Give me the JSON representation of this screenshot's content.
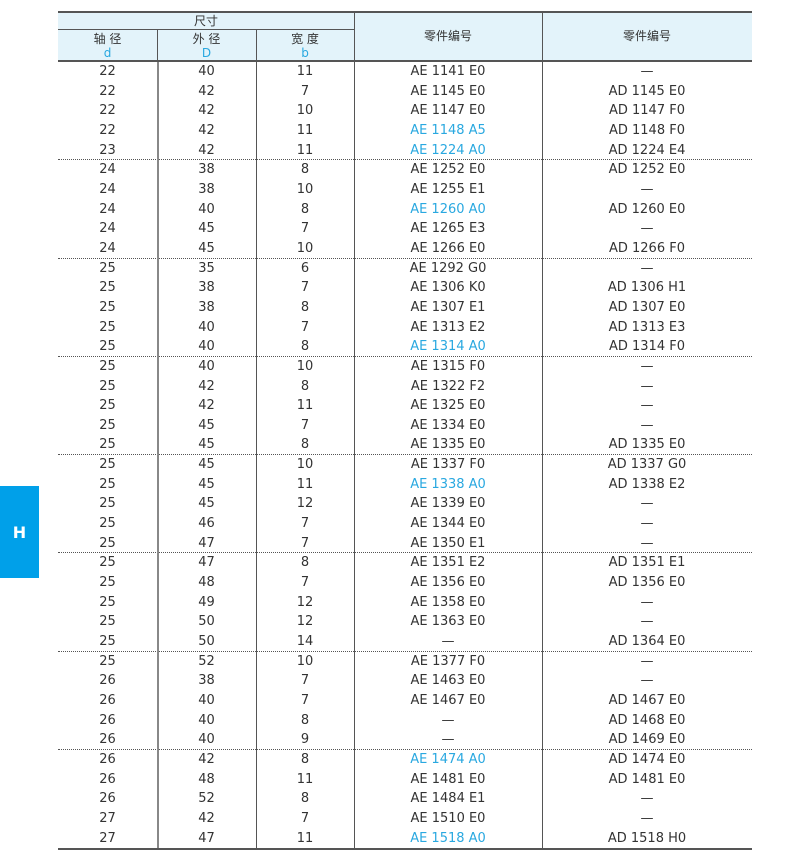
{
  "side_tab": {
    "label": "H",
    "color": "#00a0e9"
  },
  "header": {
    "group": "尺寸",
    "cols": [
      {
        "label": "轴 径",
        "symbol": "d"
      },
      {
        "label": "外 径",
        "symbol": "D"
      },
      {
        "label": "宽 度",
        "symbol": "b"
      }
    ],
    "part1": "零件编号",
    "part2": "零件编号"
  },
  "colors": {
    "highlight": "#29a8e0",
    "header_bg": "#e3f3fa"
  },
  "rows": [
    {
      "d": "22",
      "D": "40",
      "b": "11",
      "ae": "AE 1141 E0",
      "ad": "—",
      "hl": false
    },
    {
      "d": "22",
      "D": "42",
      "b": "7",
      "ae": "AE 1145 E0",
      "ad": "AD 1145 E0",
      "hl": false
    },
    {
      "d": "22",
      "D": "42",
      "b": "10",
      "ae": "AE 1147 E0",
      "ad": "AD 1147 F0",
      "hl": false
    },
    {
      "d": "22",
      "D": "42",
      "b": "11",
      "ae": "AE 1148 A5",
      "ad": "AD 1148 F0",
      "hl": true
    },
    {
      "d": "23",
      "D": "42",
      "b": "11",
      "ae": "AE 1224 A0",
      "ad": "AD 1224 E4",
      "hl": true
    },
    {
      "d": "24",
      "D": "38",
      "b": "8",
      "ae": "AE 1252 E0",
      "ad": "AD 1252 E0",
      "hl": false
    },
    {
      "d": "24",
      "D": "38",
      "b": "10",
      "ae": "AE 1255 E1",
      "ad": "—",
      "hl": false
    },
    {
      "d": "24",
      "D": "40",
      "b": "8",
      "ae": "AE 1260 A0",
      "ad": "AD 1260 E0",
      "hl": true
    },
    {
      "d": "24",
      "D": "45",
      "b": "7",
      "ae": "AE 1265 E3",
      "ad": "—",
      "hl": false
    },
    {
      "d": "24",
      "D": "45",
      "b": "10",
      "ae": "AE 1266 E0",
      "ad": "AD 1266 F0",
      "hl": false
    },
    {
      "d": "25",
      "D": "35",
      "b": "6",
      "ae": "AE 1292 G0",
      "ad": "—",
      "hl": false
    },
    {
      "d": "25",
      "D": "38",
      "b": "7",
      "ae": "AE 1306 K0",
      "ad": "AD 1306 H1",
      "hl": false
    },
    {
      "d": "25",
      "D": "38",
      "b": "8",
      "ae": "AE 1307 E1",
      "ad": "AD 1307 E0",
      "hl": false
    },
    {
      "d": "25",
      "D": "40",
      "b": "7",
      "ae": "AE 1313 E2",
      "ad": "AD 1313 E3",
      "hl": false
    },
    {
      "d": "25",
      "D": "40",
      "b": "8",
      "ae": "AE 1314 A0",
      "ad": "AD 1314 F0",
      "hl": true
    },
    {
      "d": "25",
      "D": "40",
      "b": "10",
      "ae": "AE 1315 F0",
      "ad": "—",
      "hl": false
    },
    {
      "d": "25",
      "D": "42",
      "b": "8",
      "ae": "AE 1322 F2",
      "ad": "—",
      "hl": false
    },
    {
      "d": "25",
      "D": "42",
      "b": "11",
      "ae": "AE 1325 E0",
      "ad": "—",
      "hl": false
    },
    {
      "d": "25",
      "D": "45",
      "b": "7",
      "ae": "AE 1334 E0",
      "ad": "—",
      "hl": false
    },
    {
      "d": "25",
      "D": "45",
      "b": "8",
      "ae": "AE 1335 E0",
      "ad": "AD 1335 E0",
      "hl": false
    },
    {
      "d": "25",
      "D": "45",
      "b": "10",
      "ae": "AE 1337 F0",
      "ad": "AD 1337 G0",
      "hl": false
    },
    {
      "d": "25",
      "D": "45",
      "b": "11",
      "ae": "AE 1338 A0",
      "ad": "AD 1338 E2",
      "hl": true
    },
    {
      "d": "25",
      "D": "45",
      "b": "12",
      "ae": "AE 1339 E0",
      "ad": "—",
      "hl": false
    },
    {
      "d": "25",
      "D": "46",
      "b": "7",
      "ae": "AE 1344 E0",
      "ad": "—",
      "hl": false
    },
    {
      "d": "25",
      "D": "47",
      "b": "7",
      "ae": "AE 1350 E1",
      "ad": "—",
      "hl": false
    },
    {
      "d": "25",
      "D": "47",
      "b": "8",
      "ae": "AE 1351 E2",
      "ad": "AD 1351 E1",
      "hl": false
    },
    {
      "d": "25",
      "D": "48",
      "b": "7",
      "ae": "AE 1356 E0",
      "ad": "AD 1356 E0",
      "hl": false
    },
    {
      "d": "25",
      "D": "49",
      "b": "12",
      "ae": "AE 1358 E0",
      "ad": "—",
      "hl": false
    },
    {
      "d": "25",
      "D": "50",
      "b": "12",
      "ae": "AE 1363 E0",
      "ad": "—",
      "hl": false
    },
    {
      "d": "25",
      "D": "50",
      "b": "14",
      "ae": "—",
      "ad": "AD 1364 E0",
      "hl": false
    },
    {
      "d": "25",
      "D": "52",
      "b": "10",
      "ae": "AE 1377 F0",
      "ad": "—",
      "hl": false
    },
    {
      "d": "26",
      "D": "38",
      "b": "7",
      "ae": "AE 1463 E0",
      "ad": "—",
      "hl": false
    },
    {
      "d": "26",
      "D": "40",
      "b": "7",
      "ae": "AE 1467 E0",
      "ad": "AD 1467 E0",
      "hl": false
    },
    {
      "d": "26",
      "D": "40",
      "b": "8",
      "ae": "—",
      "ad": "AD 1468 E0",
      "hl": false
    },
    {
      "d": "26",
      "D": "40",
      "b": "9",
      "ae": "—",
      "ad": "AD 1469 E0",
      "hl": false
    },
    {
      "d": "26",
      "D": "42",
      "b": "8",
      "ae": "AE 1474 A0",
      "ad": "AD 1474 E0",
      "hl": true
    },
    {
      "d": "26",
      "D": "48",
      "b": "11",
      "ae": "AE 1481 E0",
      "ad": "AD 1481 E0",
      "hl": false
    },
    {
      "d": "26",
      "D": "52",
      "b": "8",
      "ae": "AE 1484 E1",
      "ad": "—",
      "hl": false
    },
    {
      "d": "27",
      "D": "42",
      "b": "7",
      "ae": "AE 1510 E0",
      "ad": "—",
      "hl": false
    },
    {
      "d": "27",
      "D": "47",
      "b": "11",
      "ae": "AE 1518 A0",
      "ad": "AD 1518 H0",
      "hl": true
    }
  ]
}
